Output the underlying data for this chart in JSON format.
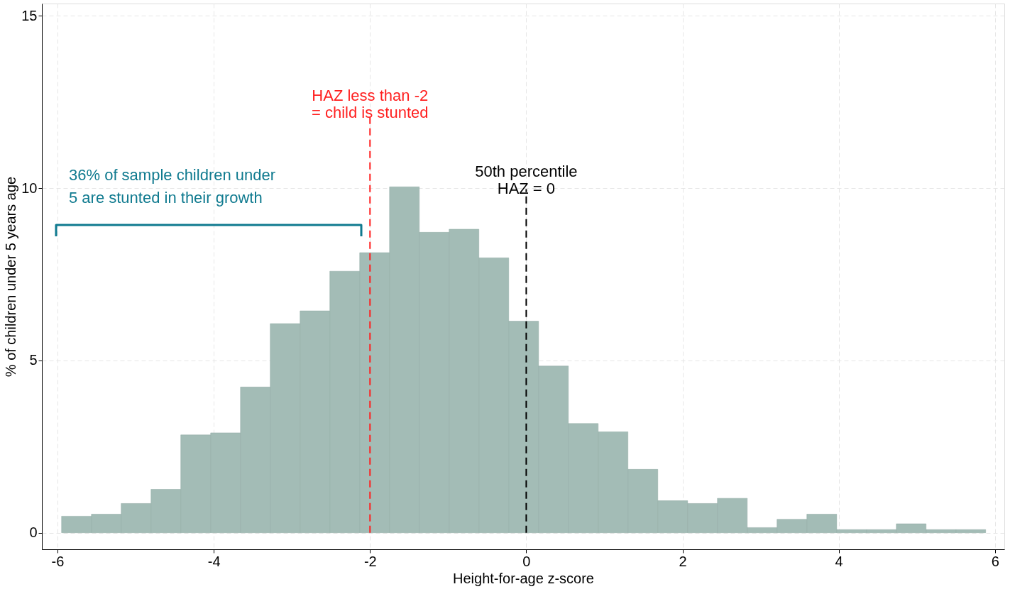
{
  "chart_data": {
    "type": "histogram",
    "xlabel": "Height-for-age z-score",
    "ylabel": "% of children under 5 years age",
    "bins": [
      -5.948,
      -5.566,
      -5.185,
      -4.803,
      -4.422,
      -4.04,
      -3.658,
      -3.277,
      -2.895,
      -2.514,
      -2.132,
      -1.75,
      -1.369,
      -0.987,
      -0.606,
      -0.224,
      0.158,
      0.539,
      0.921,
      1.302,
      1.684,
      2.066,
      2.447,
      2.829,
      3.21,
      3.592,
      3.974,
      4.355,
      4.737,
      5.118,
      5.5,
      5.881
    ],
    "values": [
      0.48,
      0.54,
      0.85,
      1.26,
      2.84,
      2.9,
      4.23,
      6.07,
      6.44,
      7.59,
      8.13,
      10.04,
      8.72,
      8.81,
      7.98,
      6.14,
      4.84,
      3.17,
      2.93,
      1.84,
      0.93,
      0.85,
      1.0,
      0.15,
      0.39,
      0.54,
      0.09,
      0.09,
      0.26,
      0.09,
      0.09
    ],
    "color": "#a3bcb6",
    "xlim": [
      -6.2,
      6.12
    ],
    "ylim": [
      -0.48,
      15.36
    ],
    "xticks": [
      -6,
      -4,
      -2,
      0,
      2,
      4,
      6
    ],
    "yticks": [
      0,
      5,
      10,
      15
    ],
    "grid": true,
    "ref_lines": [
      {
        "axis": "x",
        "value": -2,
        "label": "HAZ less than -2\n= child is stunted",
        "color": "#ff2020",
        "line_style": "dashed"
      },
      {
        "axis": "x",
        "value": 0,
        "label": "50th percentile\nHAZ = 0",
        "color": "#000000",
        "line_style": "dashed"
      }
    ],
    "annotations": [
      "36% of sample children under\n5 are stunted in their growth"
    ]
  }
}
